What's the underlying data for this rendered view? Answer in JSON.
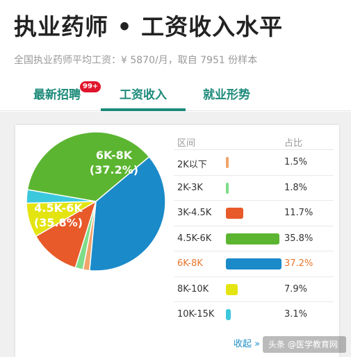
{
  "header": {
    "title": "执业药师 • 工资收入水平",
    "subtitle": "全国执业药师平均工资：¥ 5870/月，取自 7951 份样本"
  },
  "tabs": [
    {
      "label": "最新招聘",
      "badge": "99+"
    },
    {
      "label": "工资收入",
      "active": true
    },
    {
      "label": "就业形势"
    }
  ],
  "table": {
    "col_range": "区间",
    "col_pct": "占比",
    "footer_link": "收起 »"
  },
  "chart_data": {
    "type": "pie",
    "title": "",
    "slices": [
      {
        "label": "2K以下",
        "value": 1.5,
        "pct_text": "1.5%",
        "color": "#f0a46c"
      },
      {
        "label": "2K-3K",
        "value": 1.8,
        "pct_text": "1.8%",
        "color": "#7fdc89"
      },
      {
        "label": "3K-4.5K",
        "value": 11.7,
        "pct_text": "11.7%",
        "color": "#e85a2a"
      },
      {
        "label": "4.5K-6K",
        "value": 35.8,
        "pct_text": "35.8%",
        "color": "#5cb531"
      },
      {
        "label": "6K-8K",
        "value": 37.2,
        "pct_text": "37.2%",
        "color": "#1a8ac9",
        "highlight": true
      },
      {
        "label": "8K-10K",
        "value": 7.9,
        "pct_text": "7.9%",
        "color": "#e4e411"
      },
      {
        "label": "10K-15K",
        "value": 3.1,
        "pct_text": "3.1%",
        "color": "#3cc8dc"
      }
    ],
    "pie_labels": [
      {
        "range": "6K-8K",
        "pct": "(37.2%)"
      },
      {
        "range": "4.5K-6K",
        "pct": "(35.8%)"
      }
    ]
  },
  "watermark": "头条 @医学教育网"
}
